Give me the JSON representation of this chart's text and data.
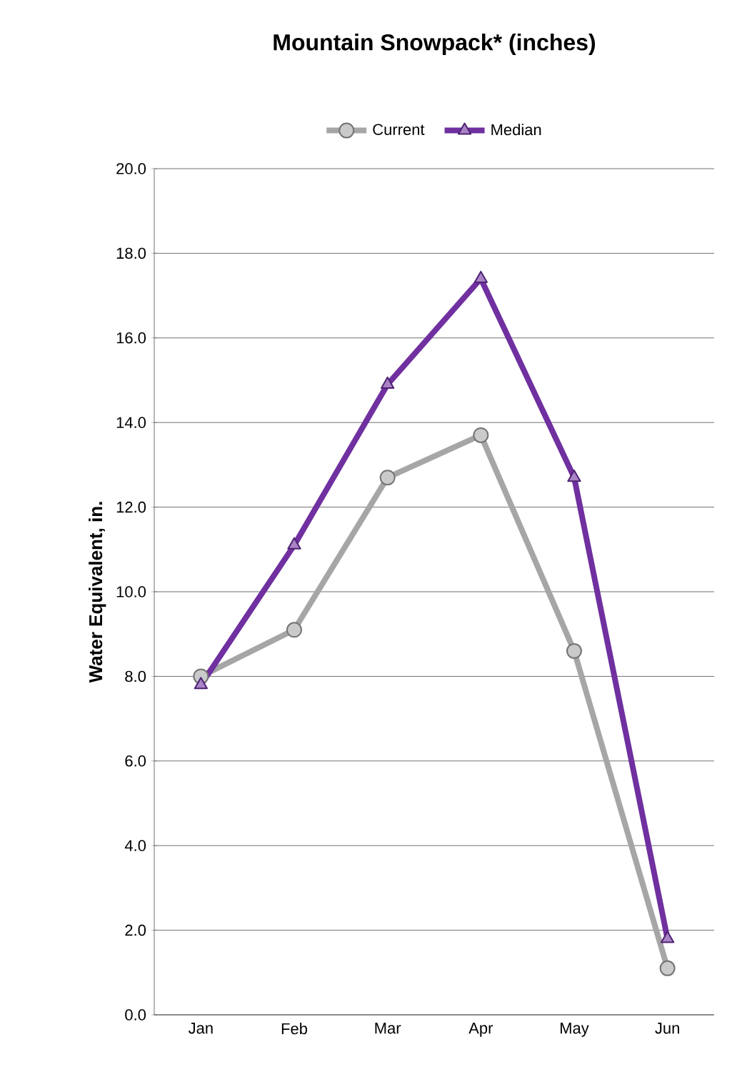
{
  "chart_data": {
    "type": "line",
    "title": "Mountain Snowpack* (inches)",
    "ylabel": "Water Equivalent, in.",
    "categories": [
      "Jan",
      "Feb",
      "Mar",
      "Apr",
      "May",
      "Jun"
    ],
    "series": [
      {
        "name": "Current",
        "color": "#a6a6a6",
        "marker": "circle",
        "values": [
          8.0,
          9.1,
          12.7,
          13.7,
          8.6,
          1.1
        ]
      },
      {
        "name": "Median",
        "color": "#7030a0",
        "marker": "triangle",
        "values": [
          7.8,
          11.1,
          14.9,
          17.4,
          12.7,
          1.8
        ]
      }
    ],
    "ylim": [
      0,
      20
    ],
    "yticks": [
      {
        "value": 0,
        "label": "0.0"
      },
      {
        "value": 2,
        "label": "2.0"
      },
      {
        "value": 4,
        "label": "4.0"
      },
      {
        "value": 6,
        "label": "6.0"
      },
      {
        "value": 8,
        "label": "8.0"
      },
      {
        "value": 10,
        "label": "10.0"
      },
      {
        "value": 12,
        "label": "12.0"
      },
      {
        "value": 14,
        "label": "14.0"
      },
      {
        "value": 16,
        "label": "16.0"
      },
      {
        "value": 18,
        "label": "18.0"
      },
      {
        "value": 20,
        "label": "20.0"
      }
    ],
    "grid": "y",
    "legend": "top",
    "line_style": "solid"
  }
}
